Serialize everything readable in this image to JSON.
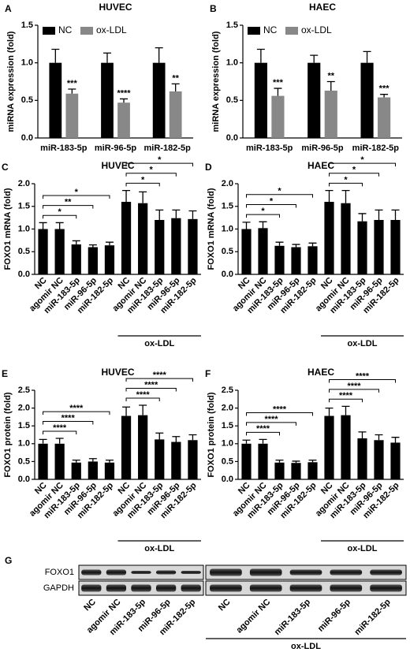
{
  "chart_data": [
    {
      "type": "grouped-bar",
      "panel": "A",
      "title": "HUVEC",
      "ylabel": "miRNA expression (fold)",
      "categories": [
        "miR-183-5p",
        "miR-96-5p",
        "miR-182-5p"
      ],
      "series": [
        {
          "name": "NC",
          "color": "#000000",
          "values": [
            1.0,
            1.0,
            1.0
          ],
          "errors": [
            0.18,
            0.13,
            0.2
          ]
        },
        {
          "name": "ox-LDL",
          "color": "#888888",
          "values": [
            0.59,
            0.47,
            0.62
          ],
          "errors": [
            0.06,
            0.05,
            0.1
          ],
          "significance": [
            "***",
            "****",
            "**"
          ]
        }
      ],
      "ylim": [
        0,
        1.5
      ],
      "yticks": [
        {
          "value": 0,
          "label": "0.0"
        },
        0.5,
        {
          "value": 1,
          "label": "1.0"
        },
        1.5
      ],
      "legend": "top-left"
    },
    {
      "type": "grouped-bar",
      "panel": "B",
      "title": "HAEC",
      "ylabel": "miRNA expression (fold)",
      "categories": [
        "miR-183-5p",
        "miR-96-5p",
        "miR-182-5p"
      ],
      "series": [
        {
          "name": "NC",
          "color": "#000000",
          "values": [
            1.0,
            1.0,
            1.0
          ],
          "errors": [
            0.18,
            0.1,
            0.15
          ]
        },
        {
          "name": "ox-LDL",
          "color": "#888888",
          "values": [
            0.56,
            0.63,
            0.54
          ],
          "errors": [
            0.1,
            0.12,
            0.04
          ],
          "significance": [
            "***",
            "**",
            "***"
          ]
        }
      ],
      "ylim": [
        0,
        1.5
      ],
      "yticks": [
        {
          "value": 0,
          "label": "0.0"
        },
        0.5,
        {
          "value": 1,
          "label": "1.0"
        },
        1.5
      ],
      "legend": "top-left"
    },
    {
      "type": "bar",
      "panel": "C",
      "title": "HUVEC",
      "ylabel": "FOXO1 mRNA (fold)",
      "categories": [
        "NC",
        "agomir NC",
        "miR-183-5p",
        "miR-96-5p",
        "miR-182-5p",
        "NC",
        "agomir NC",
        "miR-183-5p",
        "miR-96-5p",
        "miR-182-5p"
      ],
      "values": [
        1.0,
        1.0,
        0.66,
        0.6,
        0.64,
        1.6,
        1.57,
        1.2,
        1.24,
        1.22
      ],
      "errors": [
        0.14,
        0.14,
        0.08,
        0.05,
        0.07,
        0.25,
        0.25,
        0.22,
        0.18,
        0.18
      ],
      "color": "#000000",
      "comparisons": [
        {
          "groups": [
            0,
            2
          ],
          "label": "*"
        },
        {
          "groups": [
            0,
            3
          ],
          "label": "**"
        },
        {
          "groups": [
            0,
            4
          ],
          "label": "*"
        },
        {
          "groups": [
            5,
            7
          ],
          "label": "*"
        },
        {
          "groups": [
            5,
            8
          ],
          "label": "*"
        },
        {
          "groups": [
            5,
            9
          ],
          "label": "*"
        }
      ],
      "groups": [
        {
          "label": "ox-LDL",
          "categories": [
            5,
            9
          ]
        }
      ],
      "ylim": [
        0,
        2
      ],
      "yticks": [
        {
          "value": 0,
          "label": "0.0"
        },
        0.5,
        {
          "value": 1,
          "label": "1.0"
        },
        1.5,
        {
          "value": 2,
          "label": "2.0"
        }
      ]
    },
    {
      "type": "bar",
      "panel": "D",
      "title": "HAEC",
      "ylabel": "FOXO1 mRNA (fold)",
      "categories": [
        "NC",
        "agomir NC",
        "miR-183-5p",
        "miR-96-5p",
        "miR-182-5p",
        "NC",
        "agomir NC",
        "miR-183-5p",
        "miR-96-5p",
        "miR-182-5p"
      ],
      "values": [
        1.0,
        1.02,
        0.63,
        0.6,
        0.62,
        1.6,
        1.57,
        1.17,
        1.2,
        1.2
      ],
      "errors": [
        0.15,
        0.14,
        0.08,
        0.06,
        0.07,
        0.25,
        0.28,
        0.17,
        0.22,
        0.22
      ],
      "color": "#000000",
      "comparisons": [
        {
          "groups": [
            0,
            2
          ],
          "label": "*"
        },
        {
          "groups": [
            0,
            3
          ],
          "label": "*"
        },
        {
          "groups": [
            0,
            4
          ],
          "label": "*"
        },
        {
          "groups": [
            5,
            7
          ],
          "label": "*"
        },
        {
          "groups": [
            5,
            8
          ],
          "label": "*"
        },
        {
          "groups": [
            5,
            9
          ],
          "label": "*"
        }
      ],
      "groups": [
        {
          "label": "ox-LDL",
          "categories": [
            5,
            9
          ]
        }
      ],
      "ylim": [
        0,
        2
      ],
      "yticks": [
        {
          "value": 0,
          "label": "0.0"
        },
        0.5,
        {
          "value": 1,
          "label": "1.0"
        },
        1.5,
        {
          "value": 2,
          "label": "2.0"
        }
      ]
    },
    {
      "type": "bar",
      "panel": "E",
      "title": "HUVEC",
      "ylabel": "FOXO1 protein (fold)",
      "categories": [
        "NC",
        "agomir NC",
        "miR-183-5p",
        "miR-96-5p",
        "miR-182-5p",
        "NC",
        "agomir NC",
        "miR-183-5p",
        "miR-96-5p",
        "miR-182-5p"
      ],
      "values": [
        1.0,
        1.0,
        0.47,
        0.5,
        0.47,
        1.78,
        1.8,
        1.12,
        1.05,
        1.1
      ],
      "errors": [
        0.12,
        0.15,
        0.07,
        0.08,
        0.07,
        0.25,
        0.28,
        0.18,
        0.15,
        0.15
      ],
      "color": "#000000",
      "comparisons": [
        {
          "groups": [
            0,
            2
          ],
          "label": "****"
        },
        {
          "groups": [
            0,
            3
          ],
          "label": "****"
        },
        {
          "groups": [
            0,
            4
          ],
          "label": "****"
        },
        {
          "groups": [
            5,
            7
          ],
          "label": "****"
        },
        {
          "groups": [
            5,
            8
          ],
          "label": "****"
        },
        {
          "groups": [
            5,
            9
          ],
          "label": "****"
        }
      ],
      "groups": [
        {
          "label": "ox-LDL",
          "categories": [
            5,
            9
          ]
        }
      ],
      "ylim": [
        0,
        2.5
      ],
      "yticks": [
        {
          "value": 0,
          "label": "0.0"
        },
        0.5,
        {
          "value": 1,
          "label": "1.0"
        },
        1.5,
        {
          "value": 2,
          "label": "2.0"
        },
        2.5
      ]
    },
    {
      "type": "bar",
      "panel": "F",
      "title": "HAEC",
      "ylabel": "FOXO1 protein (fold)",
      "categories": [
        "NC",
        "agomir NC",
        "miR-183-5p",
        "miR-96-5p",
        "miR-182-5p",
        "NC",
        "agomir NC",
        "miR-183-5p",
        "miR-96-5p",
        "miR-182-5p"
      ],
      "values": [
        1.0,
        1.0,
        0.47,
        0.46,
        0.48,
        1.78,
        1.8,
        1.15,
        1.1,
        1.03
      ],
      "errors": [
        0.1,
        0.12,
        0.07,
        0.05,
        0.06,
        0.22,
        0.25,
        0.18,
        0.15,
        0.15
      ],
      "color": "#000000",
      "comparisons": [
        {
          "groups": [
            0,
            2
          ],
          "label": "****"
        },
        {
          "groups": [
            0,
            3
          ],
          "label": "****"
        },
        {
          "groups": [
            0,
            4
          ],
          "label": "****"
        },
        {
          "groups": [
            5,
            7
          ],
          "label": "****"
        },
        {
          "groups": [
            5,
            8
          ],
          "label": "****"
        },
        {
          "groups": [
            5,
            9
          ],
          "label": "****"
        }
      ],
      "groups": [
        {
          "label": "ox-LDL",
          "categories": [
            5,
            9
          ]
        }
      ],
      "ylim": [
        0,
        2.5
      ],
      "yticks": [
        {
          "value": 0,
          "label": "0.0"
        },
        0.5,
        {
          "value": 1,
          "label": "1.0"
        },
        1.5,
        {
          "value": 2,
          "label": "2.0"
        },
        2.5
      ]
    }
  ],
  "blot": {
    "panel": "G",
    "rows": [
      "FOXO1",
      "GAPDH"
    ],
    "lanes": [
      "NC",
      "agomir NC",
      "miR-183-5p",
      "miR-96-5p",
      "miR-182-5p",
      "NC",
      "agomir NC",
      "miR-183-5p",
      "miR-96-5p",
      "miR-182-5p"
    ],
    "group_label": "ox-LDL"
  }
}
